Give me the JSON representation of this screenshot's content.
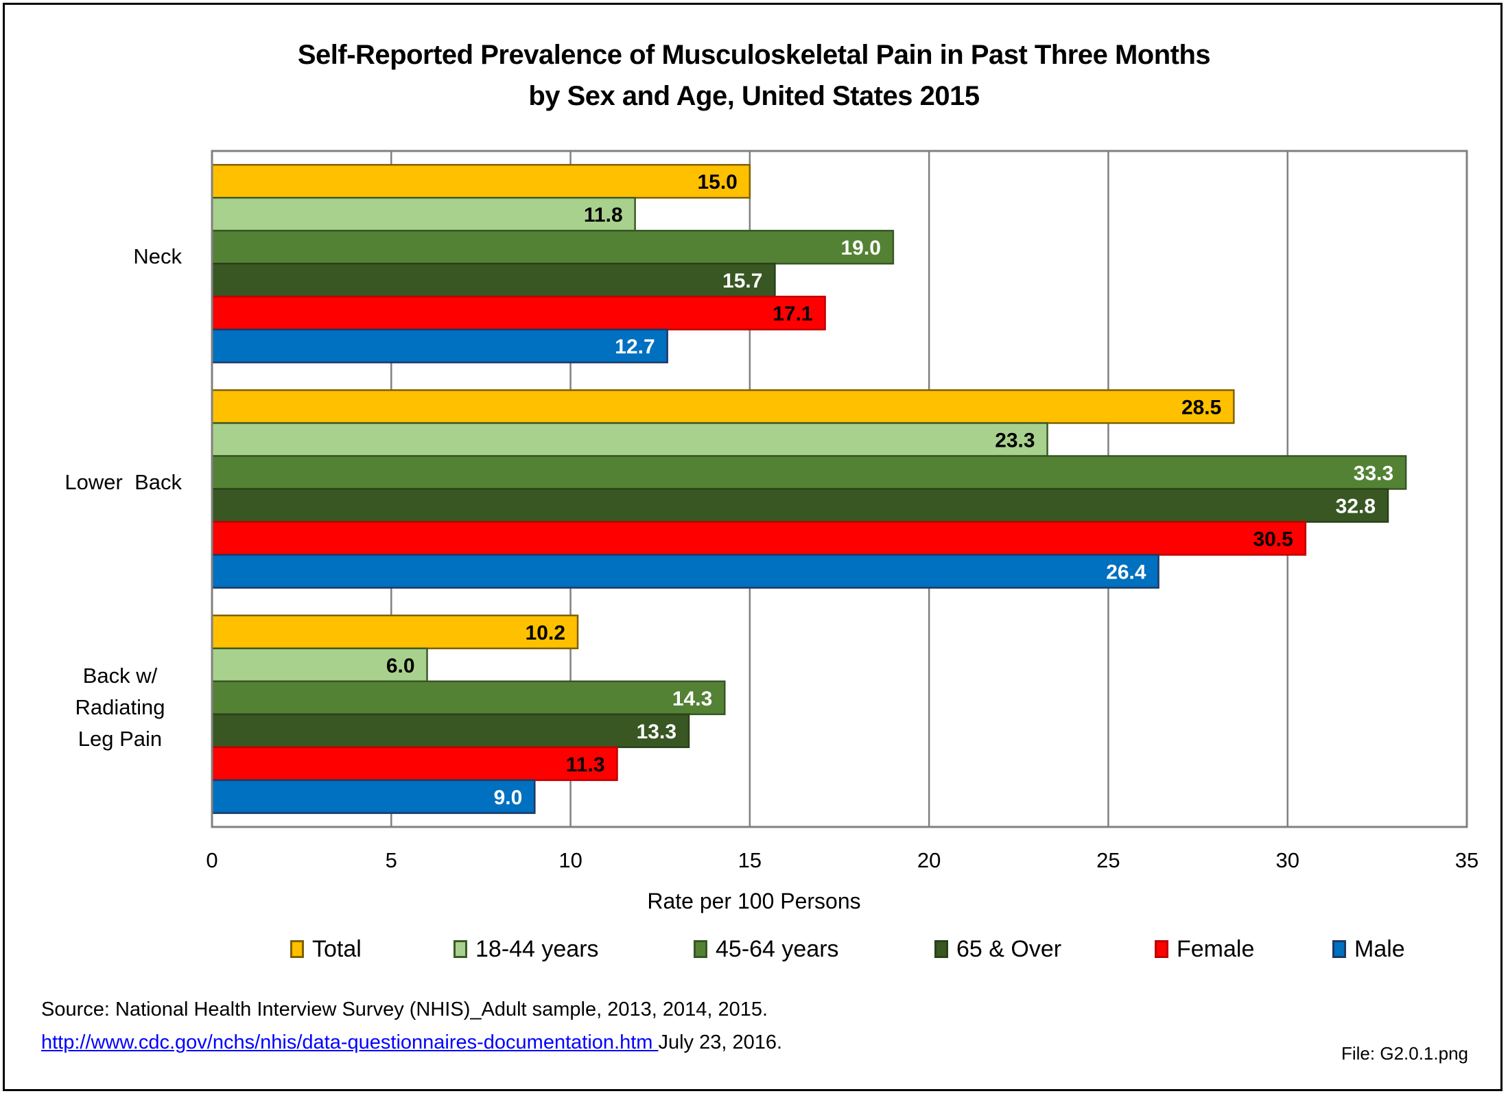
{
  "chart_data": {
    "type": "bar",
    "orientation": "horizontal",
    "title": "Self-Reported Prevalence of Musculoskeletal Pain in Past Three Months",
    "subtitle": "by Sex and Age, United States 2015",
    "xlabel": "Rate per 100 Persons",
    "ylabel": "",
    "xlim": [
      0,
      35
    ],
    "xticks": [
      0,
      5,
      10,
      15,
      20,
      25,
      30,
      35
    ],
    "grid": true,
    "legend_position": "bottom",
    "categories": [
      {
        "label": "Neck",
        "lines": [
          "Neck"
        ]
      },
      {
        "label": "Lower  Back",
        "lines": [
          "Lower  Back"
        ]
      },
      {
        "label": "Back w/ Radiating Leg Pain",
        "lines": [
          "Back w/",
          "Radiating",
          "Leg Pain"
        ]
      }
    ],
    "series": [
      {
        "name": "Total",
        "color": "#FFC000",
        "border": "#7F6000",
        "label_color": "#000000",
        "values": [
          15.0,
          28.5,
          10.2
        ]
      },
      {
        "name": "18-44 years",
        "color": "#A9D18E",
        "border": "#3B5A26",
        "label_color": "#000000",
        "values": [
          11.8,
          23.3,
          6.0
        ]
      },
      {
        "name": "45-64 years",
        "color": "#548235",
        "border": "#375623",
        "label_color": "#FFFFFF",
        "values": [
          19.0,
          33.3,
          14.3
        ]
      },
      {
        "name": "65 & Over",
        "color": "#385723",
        "border": "#2A4019",
        "label_color": "#FFFFFF",
        "values": [
          15.7,
          32.8,
          13.3
        ]
      },
      {
        "name": "Female",
        "color": "#FF0000",
        "border": "#C00000",
        "label_color": "#000000",
        "values": [
          17.1,
          30.5,
          11.3
        ]
      },
      {
        "name": "Male",
        "color": "#0070C0",
        "border": "#1F3864",
        "label_color": "#FFFFFF",
        "values": [
          12.7,
          26.4,
          9.0
        ]
      }
    ]
  },
  "footer": {
    "source": "Source: National Health Interview Survey (NHIS)_Adult sample, 2013, 2014, 2015.",
    "link": "http://www.cdc.gov/nchs/nhis/data-questionnaires-documentation.htm ",
    "date": "July 23, 2016.",
    "file": "File: G2.0.1.png"
  }
}
